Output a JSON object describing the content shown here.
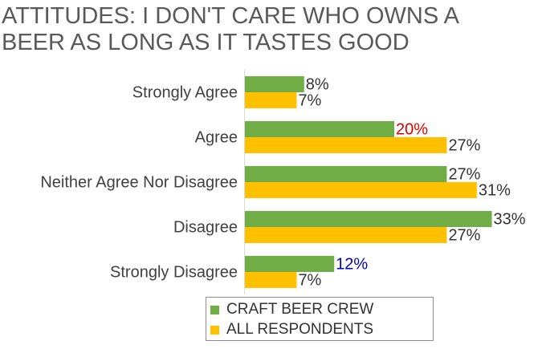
{
  "title_lines": [
    "ATTITUDES: I DON'T CARE WHO OWNS A",
    "BEER AS LONG AS IT TASTES GOOD"
  ],
  "colors": {
    "series1": "#70ad47",
    "series2": "#ffc000",
    "label_default": "#333333",
    "label_red": "#e00000",
    "label_blue": "#0000c0",
    "title": "#595959"
  },
  "chart_data": {
    "type": "bar",
    "orientation": "horizontal",
    "title": "ATTITUDES: I DON'T CARE WHO OWNS A BEER AS LONG AS IT TASTES GOOD",
    "categories": [
      "Strongly Agree",
      "Agree",
      "Neither Agree Nor Disagree",
      "Disagree",
      "Strongly Disagree"
    ],
    "series": [
      {
        "name": "CRAFT BEER CREW",
        "values": [
          8,
          20,
          27,
          33,
          12
        ],
        "labels": [
          "8%",
          "20%",
          "27%",
          "33%",
          "12%"
        ],
        "label_colors": [
          "default",
          "red",
          "default",
          "default",
          "blue"
        ]
      },
      {
        "name": "ALL RESPONDENTS",
        "values": [
          7,
          27,
          31,
          27,
          7
        ],
        "labels": [
          "7%",
          "27%",
          "31%",
          "27%",
          "7%"
        ],
        "label_colors": [
          "default",
          "default",
          "default",
          "default",
          "default"
        ]
      }
    ],
    "xlim": [
      0,
      35
    ],
    "grid": false,
    "legend": "bottom"
  },
  "legend": [
    {
      "label": "CRAFT BEER CREW",
      "color": "#70ad47"
    },
    {
      "label": "ALL RESPONDENTS",
      "color": "#ffc000"
    }
  ]
}
